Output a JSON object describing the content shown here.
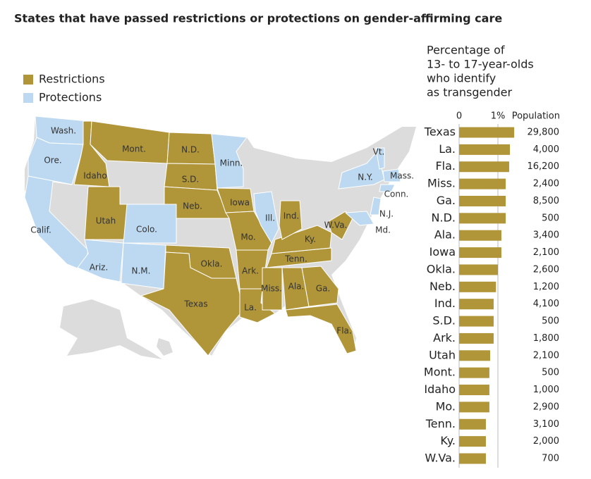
{
  "title": "States that have passed restrictions or protections on gender-affirming care",
  "map": {
    "legend": [
      {
        "name": "Restrictions",
        "color": "#b09539"
      },
      {
        "name": "Protections",
        "color": "#bcd9f1"
      }
    ],
    "states": [
      {
        "label": "Wash.",
        "status": 1
      },
      {
        "label": "Ore.",
        "status": 1
      },
      {
        "label": "Calif.",
        "status": 1
      },
      {
        "label": "Idaho",
        "status": 0
      },
      {
        "label": "Mont.",
        "status": 0
      },
      {
        "label": "N.D.",
        "status": 0
      },
      {
        "label": "S.D.",
        "status": 0
      },
      {
        "label": "Neb.",
        "status": 0
      },
      {
        "label": "Utah",
        "status": 0
      },
      {
        "label": "Colo.",
        "status": 1
      },
      {
        "label": "Ariz.",
        "status": 1
      },
      {
        "label": "N.M.",
        "status": 1
      },
      {
        "label": "Okla.",
        "status": 0
      },
      {
        "label": "Texas",
        "status": 0
      },
      {
        "label": "Minn.",
        "status": 1
      },
      {
        "label": "Iowa",
        "status": 0
      },
      {
        "label": "Mo.",
        "status": 0
      },
      {
        "label": "Ark.",
        "status": 0
      },
      {
        "label": "La.",
        "status": 0
      },
      {
        "label": "Miss.",
        "status": 0
      },
      {
        "label": "Ala.",
        "status": 0
      },
      {
        "label": "Ga.",
        "status": 0
      },
      {
        "label": "Fla.",
        "status": 0
      },
      {
        "label": "Tenn.",
        "status": 0
      },
      {
        "label": "Ky.",
        "status": 0
      },
      {
        "label": "Ill.",
        "status": 1
      },
      {
        "label": "Ind.",
        "status": 0
      },
      {
        "label": "W.Va.",
        "status": 0
      },
      {
        "label": "N.Y.",
        "status": 1
      },
      {
        "label": "Vt.",
        "status": 1
      },
      {
        "label": "Mass.",
        "status": 1
      },
      {
        "label": "Conn.",
        "status": 1
      },
      {
        "label": "N.J.",
        "status": 1
      },
      {
        "label": "Md.",
        "status": 1
      }
    ]
  },
  "chart_data": {
    "type": "hbar",
    "subtitle": [
      "Percentage of",
      "13- to 17-year-olds",
      "who identify",
      "as transgender"
    ],
    "population_header": "Population",
    "categories": [
      "Texas",
      "La.",
      "Fla.",
      "Miss.",
      "Ga.",
      "N.D.",
      "Ala.",
      "Iowa",
      "Okla.",
      "Neb.",
      "Ind.",
      "S.D.",
      "Ark.",
      "Utah",
      "Mont.",
      "Idaho",
      "Mo.",
      "Tenn.",
      "Ky.",
      "W.Va."
    ],
    "values": [
      1.42,
      1.31,
      1.29,
      1.2,
      1.2,
      1.2,
      1.09,
      1.09,
      1.0,
      0.95,
      0.89,
      0.89,
      0.89,
      0.8,
      0.78,
      0.78,
      0.78,
      0.69,
      0.69,
      0.69
    ],
    "population": [
      {
        "value": 29800,
        "label": "29,800"
      },
      {
        "value": 4000,
        "label": "4,000"
      },
      {
        "value": 16200,
        "label": "16,200"
      },
      {
        "value": 2400,
        "label": "2,400"
      },
      {
        "value": 8500,
        "label": "8,500"
      },
      500,
      {
        "value": 3400,
        "label": "3,400"
      },
      {
        "value": 2100,
        "label": "2,100"
      },
      {
        "value": 2600,
        "label": "2,600"
      },
      {
        "value": 1200,
        "label": "1,200"
      },
      {
        "value": 4100,
        "label": "4,100"
      },
      500,
      {
        "value": 1800,
        "label": "1,800"
      },
      {
        "value": 2100,
        "label": "2,100"
      },
      500,
      {
        "value": 1000,
        "label": "1,000"
      },
      {
        "value": 2900,
        "label": "2,900"
      },
      {
        "value": 3100,
        "label": "3,100"
      },
      {
        "value": 2000,
        "label": "2,000"
      },
      700
    ],
    "color": "#b09539",
    "xlim": [
      0,
      1.5
    ],
    "xticks": [
      0,
      {
        "value": 1,
        "label": "1%"
      }
    ],
    "grid": true
  }
}
